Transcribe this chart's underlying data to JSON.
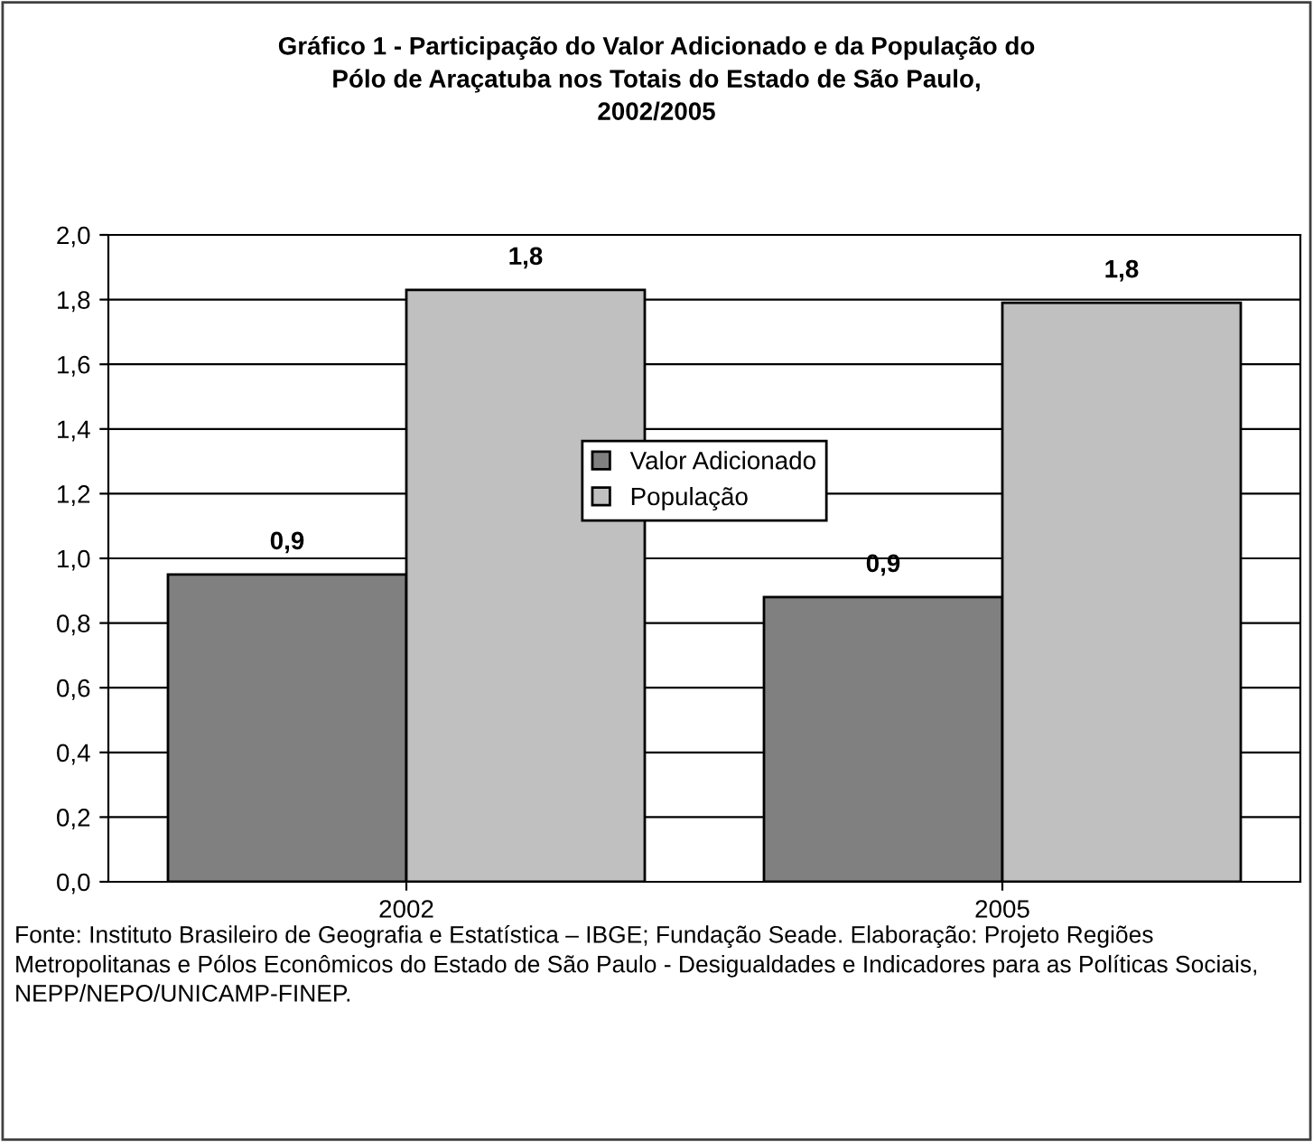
{
  "chart_data": {
    "type": "bar",
    "title": "Gráfico 1 - Participação do Valor Adicionado e da População do\nPólo de Araçatuba nos Totais do Estado de São Paulo,\n2002/2005",
    "categories": [
      "2002",
      "2005"
    ],
    "series": [
      {
        "name": "Valor Adicionado",
        "color": "#808080",
        "values": [
          0.95,
          0.88
        ],
        "value_labels": [
          "0,9",
          "0,9"
        ]
      },
      {
        "name": "População",
        "color": "#c0c0c0",
        "values": [
          1.83,
          1.79
        ],
        "value_labels": [
          "1,8",
          "1,8"
        ]
      }
    ],
    "ylim": [
      0,
      2
    ],
    "yticks": [
      {
        "value": 0,
        "label": "0,0"
      },
      {
        "value": 0.2,
        "label": "0,2"
      },
      {
        "value": 0.4,
        "label": "0,4"
      },
      {
        "value": 0.6,
        "label": "0,6"
      },
      {
        "value": 0.8,
        "label": "0,8"
      },
      {
        "value": 1,
        "label": "1,0"
      },
      {
        "value": 1.2,
        "label": "1,2"
      },
      {
        "value": 1.4,
        "label": "1,4"
      },
      {
        "value": 1.6,
        "label": "1,6"
      },
      {
        "value": 1.8,
        "label": "1,8"
      },
      {
        "value": 2,
        "label": "2,0"
      }
    ],
    "grid": "y",
    "legend": "center",
    "annotations": [
      "Fonte: Instituto Brasileiro de Geografia e Estatística – IBGE; Fundação Seade. Elaboração: Projeto Regiões Metropolitanas e Pólos Econômicos do Estado de São Paulo - Desigualdades e Indicadores para as Políticas Sociais, NEPP/NEPO/UNICAMP-FINEP."
    ]
  }
}
